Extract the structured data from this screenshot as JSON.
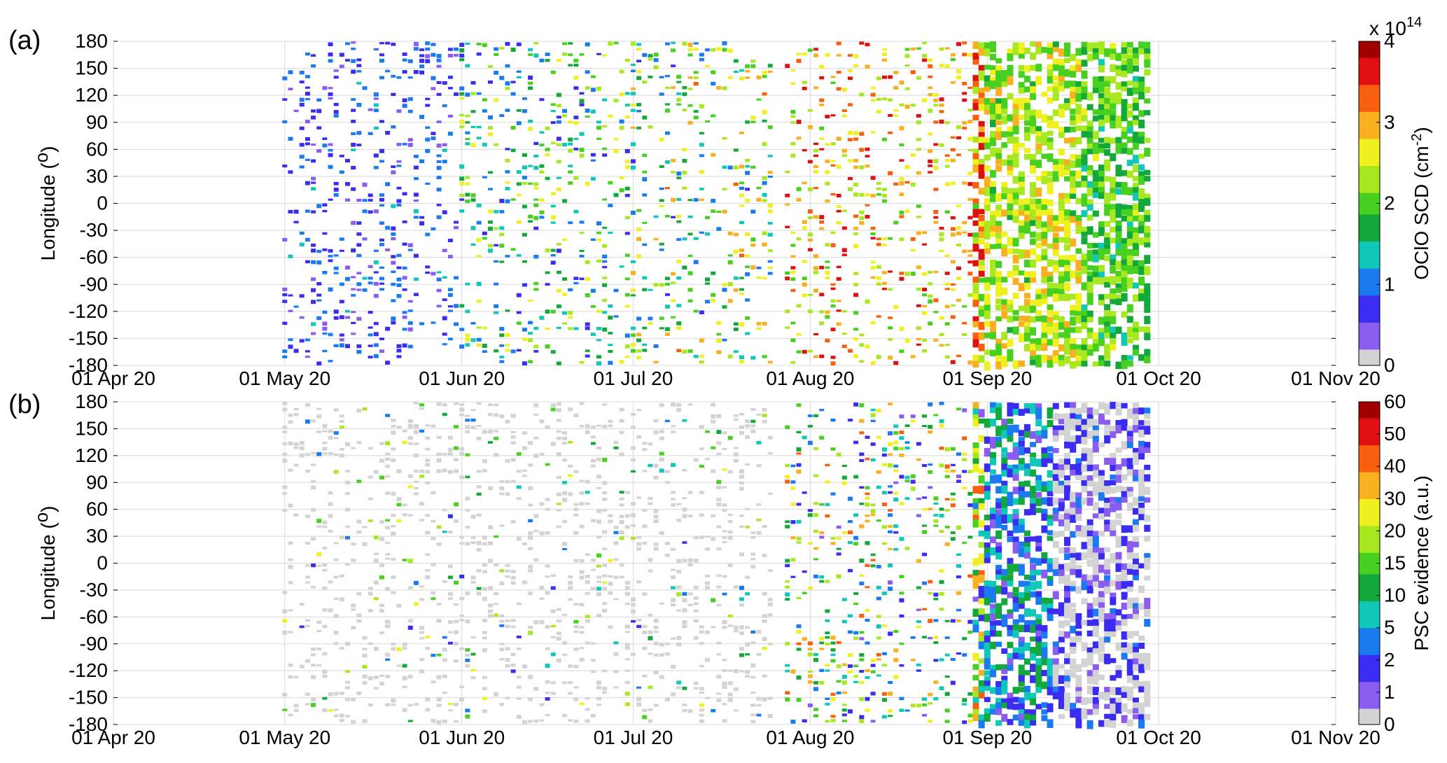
{
  "chart_data": [
    {
      "panel_label": "(a)",
      "type": "heatmap",
      "ylabel": "Longitude (",
      "ylabel_sup": "o",
      "ylabel_end": ")",
      "ylim": [
        -180,
        180
      ],
      "yticks": [
        "180",
        "150",
        "120",
        "90",
        "60",
        "30",
        "0",
        "-30",
        "-60",
        "-90",
        "-120",
        "-150",
        "-180"
      ],
      "xticks": [
        "01 Apr 20",
        "01 May 20",
        "01 Jun 20",
        "01 Jul 20",
        "01 Aug 20",
        "01 Sep 20",
        "01 Oct 20",
        "01 Nov 20"
      ],
      "xlim": [
        "2020-04-01",
        "2020-11-01"
      ],
      "grid": true,
      "colorbar": {
        "label": "OClO SCD (cm",
        "label_sup": "-2",
        "label_end": ")",
        "exponent_base": "x 10",
        "exponent_power": "14",
        "ticks": [
          "0",
          "1",
          "2",
          "3",
          "4"
        ],
        "range": [
          0,
          4
        ],
        "colormap": [
          "#d3d3d3",
          "#8a5cf0",
          "#3a2cf0",
          "#1a7af0",
          "#10c8b8",
          "#12a83a",
          "#48d020",
          "#a8e820",
          "#f0f020",
          "#f8b020",
          "#f86010",
          "#e01010",
          "#a00000"
        ]
      },
      "observation_periods": [
        [
          "2020-05-01",
          "2020-07-25"
        ],
        [
          "2020-07-28",
          "2020-09-29"
        ]
      ],
      "trend": [
        {
          "period": "May 2020",
          "typical_value": 0.8
        },
        {
          "period": "Jun 2020",
          "typical_value": 1.4
        },
        {
          "period": "Jul 2020",
          "typical_value": 2.0
        },
        {
          "period": "Aug 2020",
          "typical_value": 3.1
        },
        {
          "period": "Sep 2020",
          "typical_value": 2.2
        }
      ]
    },
    {
      "panel_label": "(b)",
      "type": "heatmap",
      "ylabel": "Longitude (",
      "ylabel_sup": "o",
      "ylabel_end": ")",
      "ylim": [
        -180,
        180
      ],
      "yticks": [
        "180",
        "150",
        "120",
        "90",
        "60",
        "30",
        "0",
        "-30",
        "-60",
        "-90",
        "-120",
        "-150",
        "-180"
      ],
      "xticks": [
        "01 Apr 20",
        "01 May 20",
        "01 Jun 20",
        "01 Jul 20",
        "01 Aug 20",
        "01 Sep 20",
        "01 Oct 20",
        "01 Nov 20"
      ],
      "xlim": [
        "2020-04-01",
        "2020-11-01"
      ],
      "grid": true,
      "colorbar": {
        "label": "PSC evidence (a.u.)",
        "ticks": [
          "0",
          "1",
          "2",
          "5",
          "10",
          "15",
          "20",
          "30",
          "40",
          "50",
          "60"
        ],
        "range": [
          0,
          60
        ],
        "colormap": [
          "#d3d3d3",
          "#8a5cf0",
          "#3a2cf0",
          "#1a7af0",
          "#10c8b8",
          "#12a83a",
          "#48d020",
          "#a8e820",
          "#f0f020",
          "#f8b020",
          "#f86010",
          "#e01010",
          "#a00000"
        ]
      },
      "observation_periods": [
        [
          "2020-05-01",
          "2020-07-25"
        ],
        [
          "2020-07-28",
          "2020-09-29"
        ]
      ],
      "trend": [
        {
          "period": "May 2020",
          "typical_value": 0
        },
        {
          "period": "Jun 2020",
          "typical_value": 0.5
        },
        {
          "period": "Jul 2020",
          "typical_value": 2
        },
        {
          "period": "Aug 2020",
          "typical_value": 8
        },
        {
          "period": "Sep 2020",
          "typical_value": 1
        }
      ]
    }
  ]
}
